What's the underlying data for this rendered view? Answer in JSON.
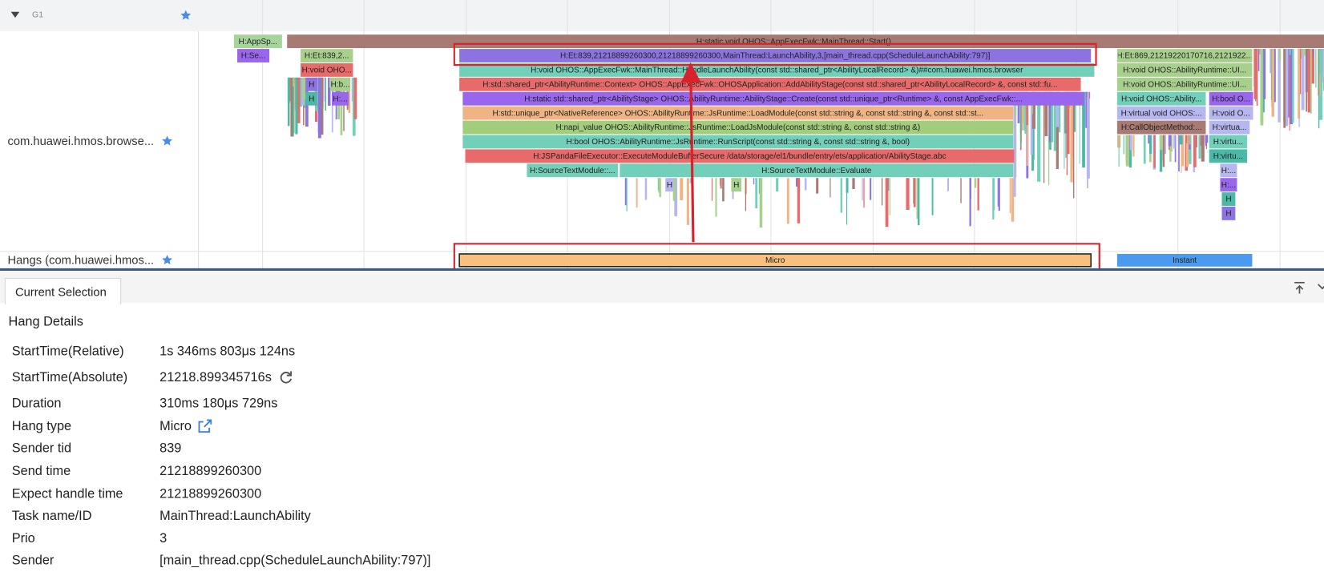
{
  "timeline": {
    "tracks": [
      {
        "name": "G1"
      },
      {
        "name": "com.huawei.hmos.browse..."
      },
      {
        "name": "Hangs (com.huawei.hmos..."
      }
    ],
    "slices": [
      "H:AppSp...",
      "H:static void OHOS::AppExecFwk::MainThread::Start()",
      "H:Se...",
      "H:Et:839,2...",
      "H:Et:839,21218899260300,21218899260300,MainThread:LaunchAbility,3,[main_thread.cpp(ScheduleLaunchAbility:797)]",
      "H:Et:869,21219220170716,2121922...",
      "H:void OHO...",
      "H:void OHOS::AppExecFwk::MainThread::HandleLaunchAbility(const std::shared_ptr<AbilityLocalRecord> &)##com.huawei.hmos.browser",
      "H:void OHOS::AbilityRuntime::UI...",
      "H",
      "H:b...",
      "H:std::shared_ptr<AbilityRuntime::Context> OHOS::AppExecFwk::OHOSApplication::AddAbilityStage(const std::shared_ptr<AbilityLocalRecord> &, const std::fu...",
      "H:void OHOS::AbilityRuntime::UI...",
      "H",
      "H:...",
      "H:static std::shared_ptr<AbilityStage> OHOS::AbilityRuntime::AbilityStage::Create(const std::unique_ptr<Runtime> &, const AppExecFwk::...",
      "H:void OHOS::Ability...",
      "H:bool O...",
      "H:std::unique_ptr<NativeReference> OHOS::AbilityRuntime::JsRuntime::LoadModule(const std::string &, const std::string &, const std::st...",
      "H:virtual void OHOS:...",
      "H:void O...",
      "H:napi_value OHOS::AbilityRuntime::JsRuntime::LoadJsModule(const std::string &, const std::string &)",
      "H:CallObjectMethod:...",
      "H:virtua...",
      "H:bool OHOS::AbilityRuntime::JsRuntime::RunScript(const std::string &, const std::string &, bool)",
      "H:virtu...",
      "H:JSPandaFileExecutor::ExecuteModuleBufferSecure /data/storage/el1/bundle/entry/ets/application/AbilityStage.abc",
      "H:virtu...",
      "H:SourceTextModule::...",
      "H:SourceTextModule::Evaluate",
      "H:...",
      "H",
      "H",
      "H:...",
      "H",
      "H"
    ],
    "hangs": [
      "Micro",
      "Instant"
    ]
  },
  "panel": {
    "tab": "Current Selection",
    "title": "Hang Details",
    "rows": [
      [
        "StartTime(Relative)",
        "1s 346ms 803μs 124ns"
      ],
      [
        "StartTime(Absolute)",
        "21218.899345716s"
      ],
      [
        "Duration",
        "310ms 180μs 729ns"
      ],
      [
        "Hang type",
        "Micro"
      ],
      [
        "Sender tid",
        "839"
      ],
      [
        "Send time",
        "21218899260300"
      ],
      [
        "Expect handle time",
        "21218899260300"
      ],
      [
        "Task name/ID",
        "MainThread:LaunchAbility"
      ],
      [
        "Prio",
        "3"
      ],
      [
        "Sender",
        "[main_thread.cpp(ScheduleLaunchAbility:797)]"
      ]
    ]
  }
}
